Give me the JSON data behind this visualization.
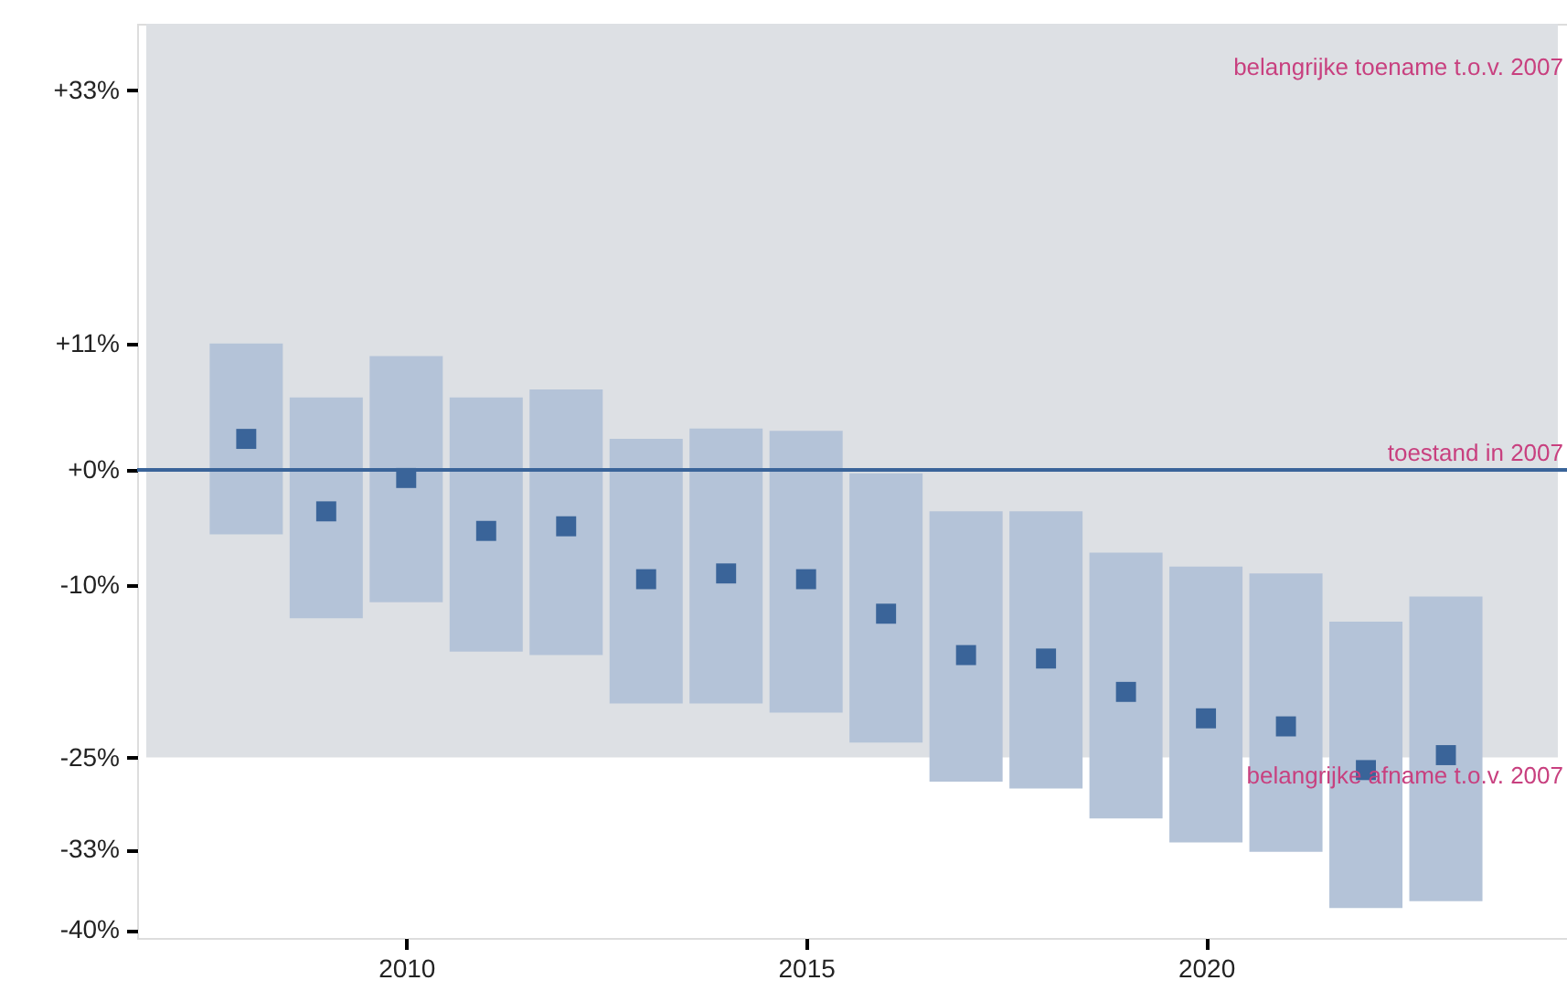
{
  "chart_data": {
    "type": "bar",
    "x": [
      2008,
      2009,
      2010,
      2011,
      2012,
      2013,
      2014,
      2015,
      2016,
      2017,
      2018,
      2019,
      2020,
      2021,
      2022,
      2023
    ],
    "xlim": [
      2006.75,
      2024.4
    ],
    "xticks": [
      2010,
      2015,
      2020
    ],
    "ylim": [
      -40.7,
      38.8
    ],
    "yticks": [
      {
        "value": 33,
        "label": "+33%"
      },
      {
        "value": 11,
        "label": "+11%"
      },
      {
        "value": 0,
        "label": "+0%"
      },
      {
        "value": -10,
        "label": "-10%"
      },
      {
        "value": -25,
        "label": "-25%"
      },
      {
        "value": -33,
        "label": "-33%"
      },
      {
        "value": -40,
        "label": "-40%"
      }
    ],
    "grid": true,
    "series": [
      {
        "color": "#b4c3d8",
        "base": [
          -5.6,
          -12.9,
          -11.5,
          -15.8,
          -16.1,
          -20.3,
          -20.3,
          -21.1,
          -23.7,
          -27.1,
          -27.7,
          -30.3,
          -32.4,
          -33.2,
          -38.1,
          -37.5
        ],
        "values": [
          16.6,
          19.2,
          21.4,
          22.1,
          23.1,
          23.0,
          23.9,
          24.5,
          23.4,
          23.5,
          24.1,
          23.1,
          24.0,
          24.2,
          24.9,
          26.5
        ]
      },
      {
        "type": "scatter",
        "marker": "square",
        "color": "#3a6499",
        "values": [
          2.7,
          -3.6,
          -0.7,
          -5.3,
          -4.9,
          -9.5,
          -9.0,
          -9.5,
          -12.5,
          -16.1,
          -16.4,
          -19.3,
          -21.6,
          -22.3,
          -26.1,
          -24.8
        ]
      }
    ],
    "bands": [
      {
        "axis": "y",
        "from": -25,
        "to": 38.8,
        "color": "#dde0e4"
      }
    ],
    "ref_lines": [
      {
        "axis": "y",
        "value": 0,
        "label": "toestand in 2007",
        "color": "#3a6499"
      }
    ],
    "annotations": [
      "belangrijke toename t.o.v. 2007",
      "belangrijke afname t.o.v. 2007"
    ]
  }
}
